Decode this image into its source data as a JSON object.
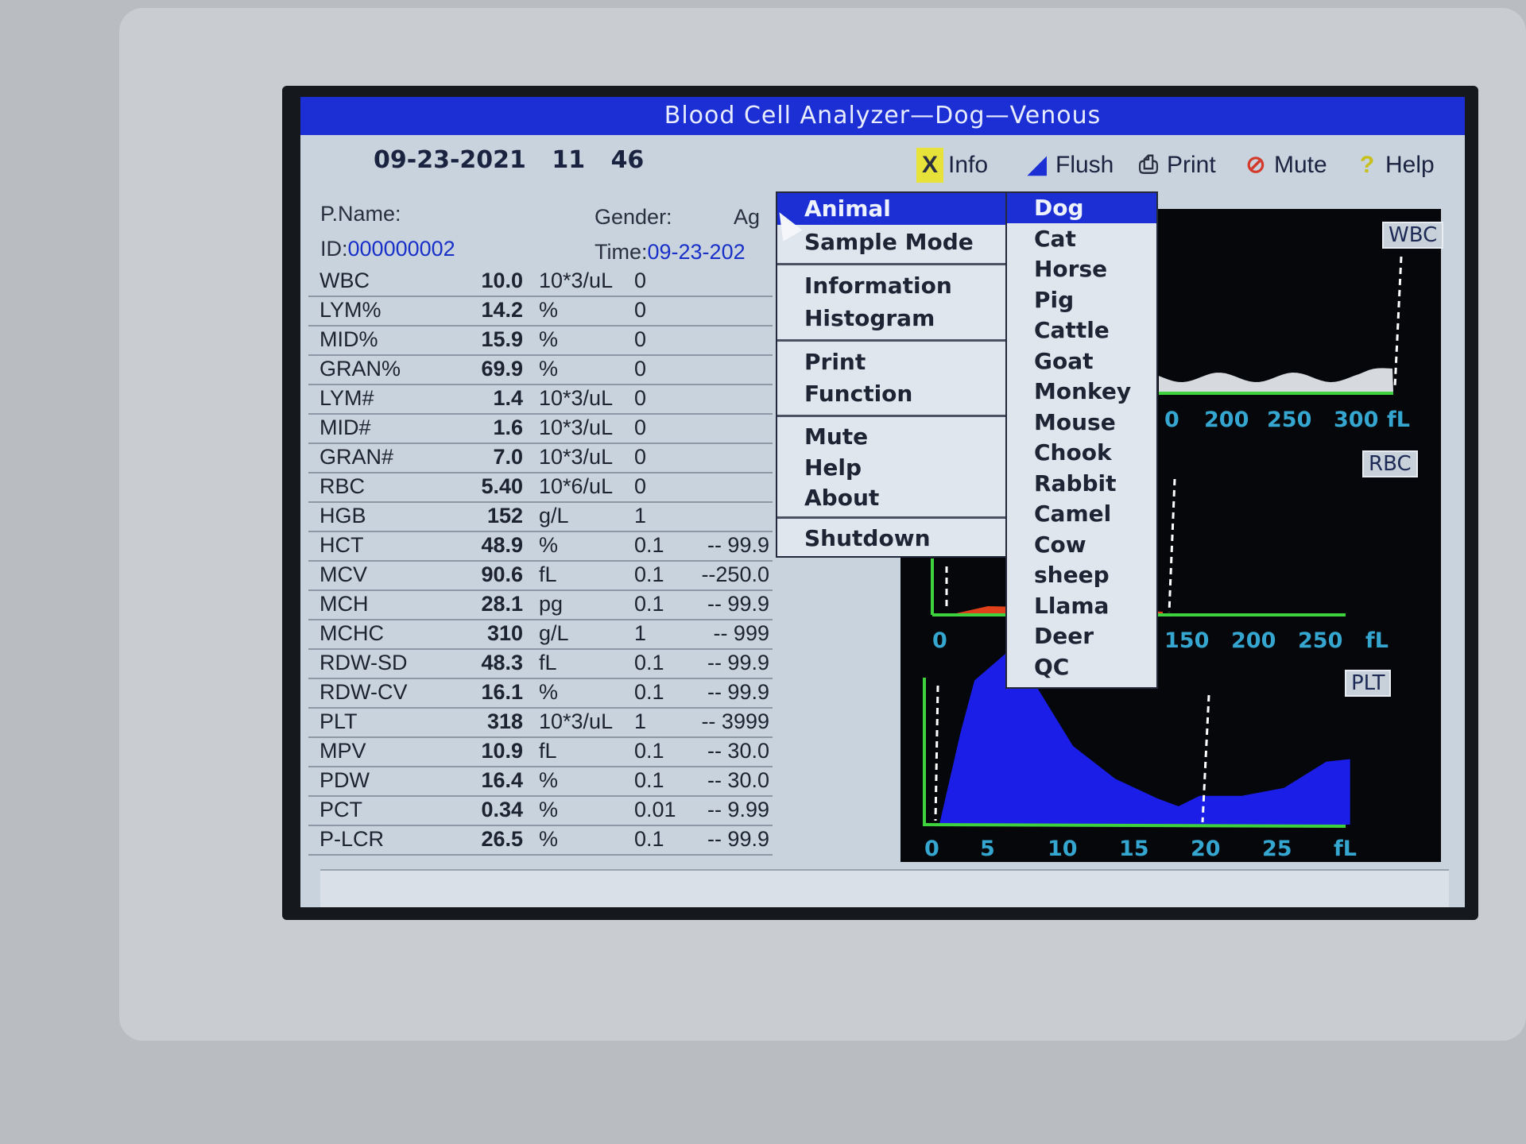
{
  "window": {
    "title": "Blood Cell Analyzer—Dog—Venous"
  },
  "header": {
    "date": "09-23-2021",
    "hour": "11",
    "minute": "46"
  },
  "toolbar": [
    {
      "label": "Info",
      "icon": "info-x-icon",
      "color": "#e7e23a"
    },
    {
      "label": "Flush",
      "icon": "flush-icon",
      "color": "#1c2fd4"
    },
    {
      "label": "Print",
      "icon": "printer-icon",
      "color": "#2a3040"
    },
    {
      "label": "Mute",
      "icon": "mute-icon",
      "color": "#d43a2a"
    },
    {
      "label": "Help",
      "icon": "help-icon",
      "color": "#d9cf2a"
    }
  ],
  "patient": {
    "name_label": "P.Name:",
    "gender_label": "Gender:",
    "age_label": "Ag",
    "id_label": "ID:",
    "id_value": "000000002",
    "time_label": "Time:",
    "time_value": "09-23-202"
  },
  "results": [
    {
      "name": "WBC",
      "value": "10.0",
      "unit": "10*3/uL",
      "lo": "0",
      "hi": ""
    },
    {
      "name": "LYM%",
      "value": "14.2",
      "unit": "%",
      "lo": "0",
      "hi": ""
    },
    {
      "name": "MID%",
      "value": "15.9",
      "unit": "%",
      "lo": "0",
      "hi": ""
    },
    {
      "name": "GRAN%",
      "value": "69.9",
      "unit": "%",
      "lo": "0",
      "hi": ""
    },
    {
      "name": "LYM#",
      "value": "1.4",
      "unit": "10*3/uL",
      "lo": "0",
      "hi": ""
    },
    {
      "name": "MID#",
      "value": "1.6",
      "unit": "10*3/uL",
      "lo": "0",
      "hi": ""
    },
    {
      "name": "GRAN#",
      "value": "7.0",
      "unit": "10*3/uL",
      "lo": "0",
      "hi": ""
    },
    {
      "name": "RBC",
      "value": "5.40",
      "unit": "10*6/uL",
      "lo": "0",
      "hi": ""
    },
    {
      "name": "HGB",
      "value": "152",
      "unit": "g/L",
      "lo": "1",
      "hi": ""
    },
    {
      "name": "HCT",
      "value": "48.9",
      "unit": "%",
      "lo": "0.1",
      "hi": "-- 99.9"
    },
    {
      "name": "MCV",
      "value": "90.6",
      "unit": "fL",
      "lo": "0.1",
      "hi": "--250.0"
    },
    {
      "name": "MCH",
      "value": "28.1",
      "unit": "pg",
      "lo": "0.1",
      "hi": "-- 99.9"
    },
    {
      "name": "MCHC",
      "value": "310",
      "unit": "g/L",
      "lo": "1",
      "hi": "-- 999"
    },
    {
      "name": "RDW-SD",
      "value": "48.3",
      "unit": "fL",
      "lo": "0.1",
      "hi": "-- 99.9"
    },
    {
      "name": "RDW-CV",
      "value": "16.1",
      "unit": "%",
      "lo": "0.1",
      "hi": "-- 99.9"
    },
    {
      "name": "PLT",
      "value": "318",
      "unit": "10*3/uL",
      "lo": "1",
      "hi": "-- 3999"
    },
    {
      "name": "MPV",
      "value": "10.9",
      "unit": "fL",
      "lo": "0.1",
      "hi": "-- 30.0"
    },
    {
      "name": "PDW",
      "value": "16.4",
      "unit": "%",
      "lo": "0.1",
      "hi": "-- 30.0"
    },
    {
      "name": "PCT",
      "value": "0.34",
      "unit": "%",
      "lo": "0.01",
      "hi": "-- 9.99"
    },
    {
      "name": "P-LCR",
      "value": "26.5",
      "unit": "%",
      "lo": "0.1",
      "hi": "-- 99.9"
    }
  ],
  "menu": {
    "items": [
      "Animal",
      "Sample Mode",
      "Information",
      "Histogram",
      "Print",
      "Function",
      "Mute",
      "Help",
      "About",
      "Shutdown"
    ],
    "selected": "Animal"
  },
  "animal_submenu": {
    "items": [
      "Dog",
      "Cat",
      "Horse",
      "Pig",
      "Cattle",
      "Goat",
      "Monkey",
      "Mouse",
      "Chook",
      "Rabbit",
      "Camel",
      "Cow",
      "sheep",
      "Llama",
      "Deer",
      "QC"
    ],
    "selected": "Dog"
  },
  "histograms": {
    "wbc": {
      "label": "WBC",
      "ticks": [
        "0",
        "200",
        "250",
        "300",
        "fL"
      ]
    },
    "rbc": {
      "label": "RBC",
      "ticks": [
        "0",
        "150",
        "200",
        "250",
        "fL"
      ]
    },
    "plt": {
      "label": "PLT",
      "ticks": [
        "0",
        "5",
        "10",
        "15",
        "20",
        "25",
        "fL"
      ],
      "fill_color": "#1a1ee6"
    }
  }
}
